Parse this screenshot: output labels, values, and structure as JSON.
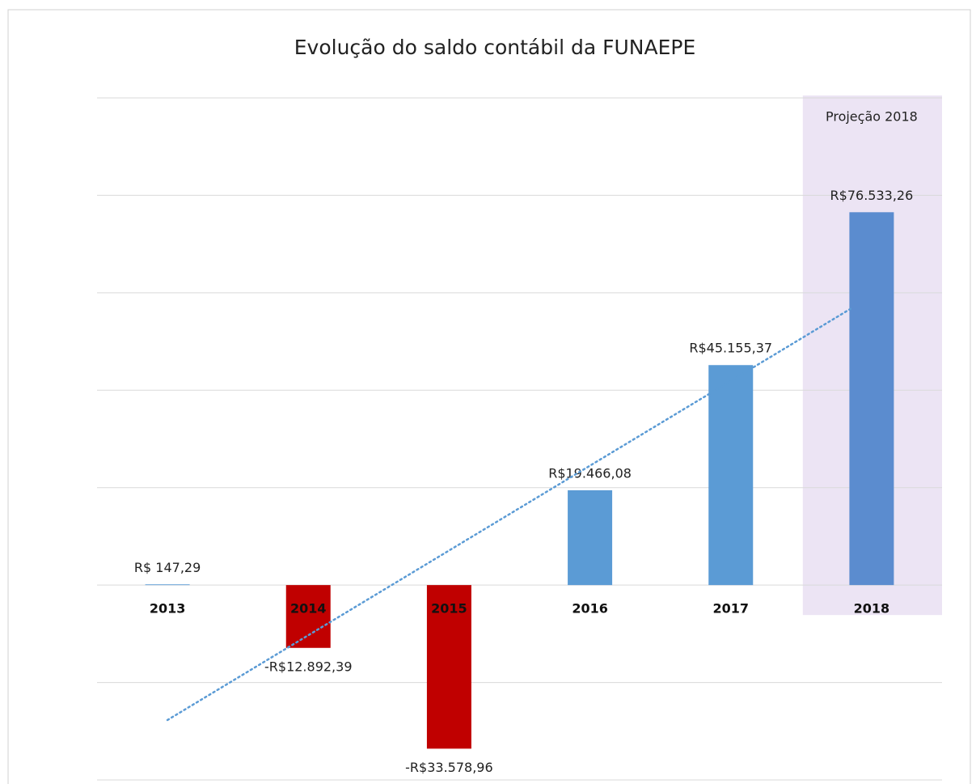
{
  "chart_data": {
    "type": "bar",
    "title": "Evolução do saldo contábil da FUNAEPE",
    "categories": [
      "2013",
      "2014",
      "2015",
      "2016",
      "2017",
      "2018"
    ],
    "values": [
      147.29,
      -12892.39,
      -33578.96,
      19466.08,
      45155.37,
      76533.26
    ],
    "value_labels": [
      "R$ 147,29",
      "-R$12.892,39",
      "-R$33.578,96",
      "R$19.466,08",
      "R$45.155,37",
      "R$76.533,26"
    ],
    "colors": [
      "#5b9bd5",
      "#c00000",
      "#c00000",
      "#5b9bd5",
      "#5b9bd5",
      "#5b8ccf"
    ],
    "ylim": [
      -40000,
      100000
    ],
    "yticks": [
      -40000,
      -20000,
      0,
      20000,
      40000,
      60000,
      80000,
      100000
    ],
    "grid": true,
    "trendline": "linear",
    "trendline_color": "#5b9bd5",
    "annotation": "Projeção 2018",
    "highlight_category": 5,
    "highlight_color": "#ece4f4"
  }
}
